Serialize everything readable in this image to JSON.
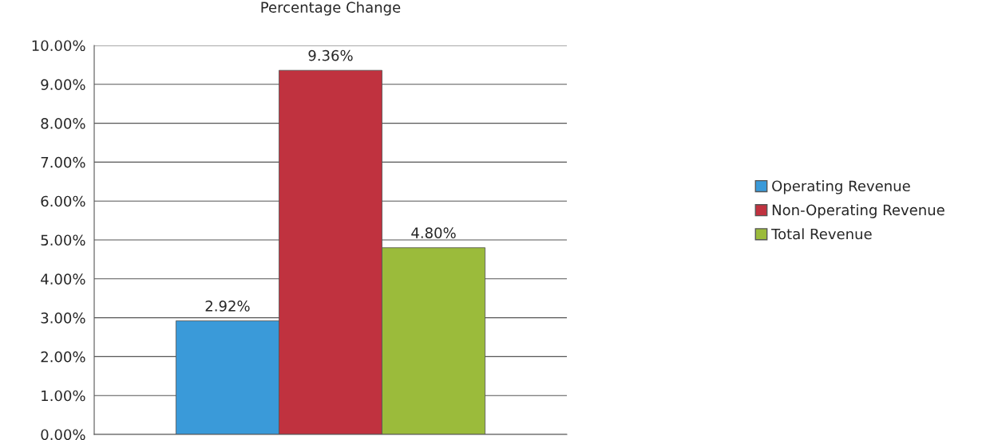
{
  "chart_data": {
    "type": "bar",
    "title": "Percentage Change",
    "categories": [
      null
    ],
    "series": [
      {
        "name": "Operating Revenue",
        "color": "#3a9ad9",
        "values": [
          2.92
        ],
        "value_labels": [
          "2.92%"
        ]
      },
      {
        "name": "Non-Operating Revenue",
        "color": "#c0323f",
        "values": [
          9.36
        ],
        "value_labels": [
          "9.36%"
        ]
      },
      {
        "name": "Total Revenue",
        "color": "#9bbb3b",
        "values": [
          4.8
        ],
        "value_labels": [
          "4.80%"
        ]
      }
    ],
    "ylim": [
      0,
      10
    ],
    "yticks": [
      {
        "value": 0,
        "label": "0.00%"
      },
      {
        "value": 1,
        "label": "1.00%"
      },
      {
        "value": 2,
        "label": "2.00%"
      },
      {
        "value": 3,
        "label": "3.00%"
      },
      {
        "value": 4,
        "label": "4.00%"
      },
      {
        "value": 5,
        "label": "5.00%"
      },
      {
        "value": 6,
        "label": "6.00%"
      },
      {
        "value": 7,
        "label": "7.00%"
      },
      {
        "value": 8,
        "label": "8.00%"
      },
      {
        "value": 9,
        "label": "9.00%"
      },
      {
        "value": 10,
        "label": "10.00%"
      }
    ],
    "grid": "y",
    "legend": "right"
  }
}
